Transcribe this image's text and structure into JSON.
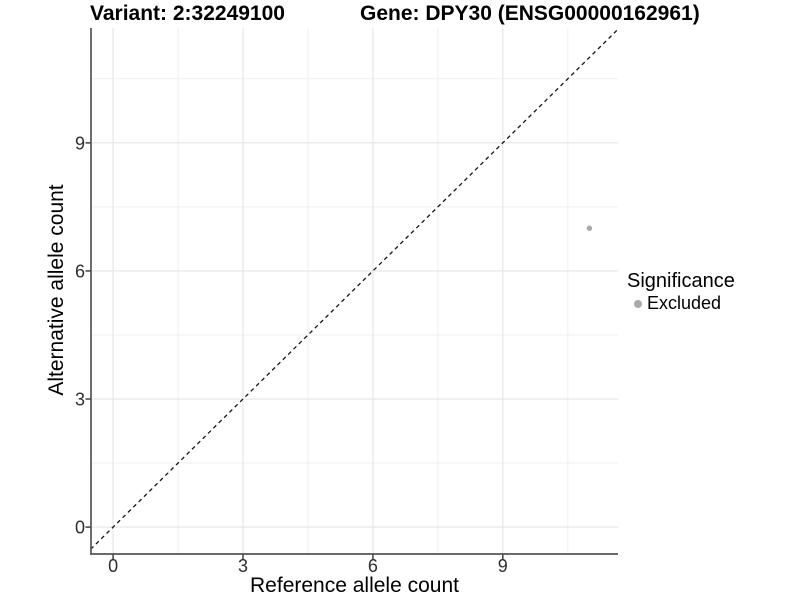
{
  "chart_data": {
    "type": "scatter",
    "title_left": "Variant: 2:32249100",
    "title_right": "Gene: DPY30 (ENSG00000162961)",
    "xlabel": "Reference allele count",
    "ylabel": "Alternative allele count",
    "xlim": [
      -0.51,
      11.66
    ],
    "ylim": [
      -0.63,
      11.69
    ],
    "x_ticks": [
      0,
      3,
      6,
      9
    ],
    "y_ticks": [
      0,
      3,
      6,
      9
    ],
    "x_minor_ticks": [
      1.5,
      4.5,
      7.5,
      10.5
    ],
    "y_minor_ticks": [
      1.5,
      4.5,
      7.5,
      10.5
    ],
    "grid": true,
    "reference_line": {
      "type": "identity",
      "slope": 1,
      "intercept": 0,
      "style": "dashed",
      "color": "#141414"
    },
    "series": [
      {
        "name": "Excluded",
        "color": "#aaaaaa",
        "points": [
          {
            "x": 11,
            "y": 7
          }
        ]
      }
    ],
    "legend": {
      "title": "Significance",
      "position": "right",
      "items": [
        {
          "label": "Excluded",
          "color": "#aaaaaa"
        }
      ]
    },
    "colors": {
      "background": "#ffffff",
      "grid_major": "#e4e4e4",
      "grid_minor": "#efefef",
      "axis_line": "#555555",
      "tick_mark": "#4d4d4d",
      "tick_label": "#2e2e2e"
    }
  }
}
